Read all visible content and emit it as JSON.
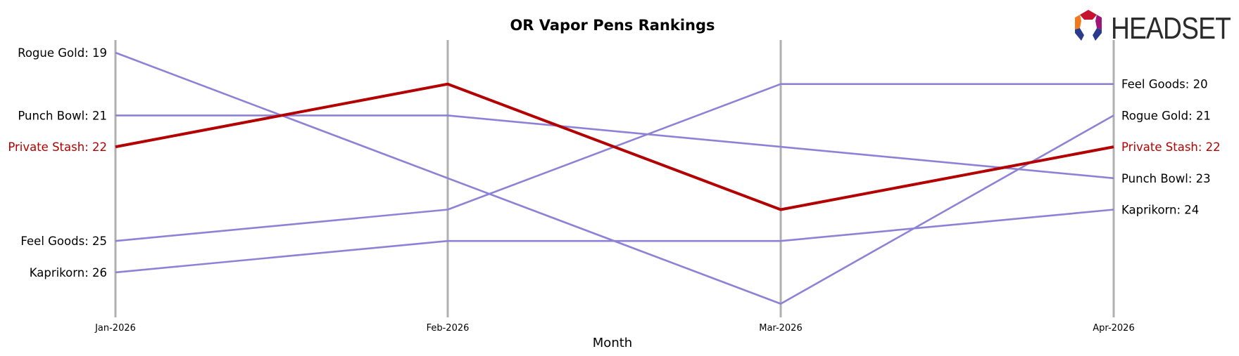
{
  "chart_data": {
    "type": "line",
    "title": "OR Vapor Pens Rankings",
    "xlabel": "Month",
    "ylabel": "",
    "x": [
      "Jan-2026",
      "Feb-2026",
      "Mar-2026",
      "Apr-2026"
    ],
    "ylim": [
      19,
      27
    ],
    "y_inverted": true,
    "grid": false,
    "highlight_color": "#b30000",
    "series_color": "#8e82d6",
    "series": [
      {
        "name": "Rogue Gold",
        "values": [
          19,
          23,
          27,
          21
        ],
        "highlight": false
      },
      {
        "name": "Punch Bowl",
        "values": [
          21,
          21,
          22,
          23
        ],
        "highlight": false
      },
      {
        "name": "Feel Goods",
        "values": [
          25,
          24,
          20,
          20
        ],
        "highlight": false
      },
      {
        "name": "Kaprikorn",
        "values": [
          26,
          25,
          25,
          24
        ],
        "highlight": false
      },
      {
        "name": "Private Stash",
        "values": [
          22,
          20,
          24,
          22
        ],
        "highlight": true
      }
    ]
  },
  "logo": {
    "text": "HEADSET",
    "icon": "headset-hexagon-logo-icon"
  }
}
